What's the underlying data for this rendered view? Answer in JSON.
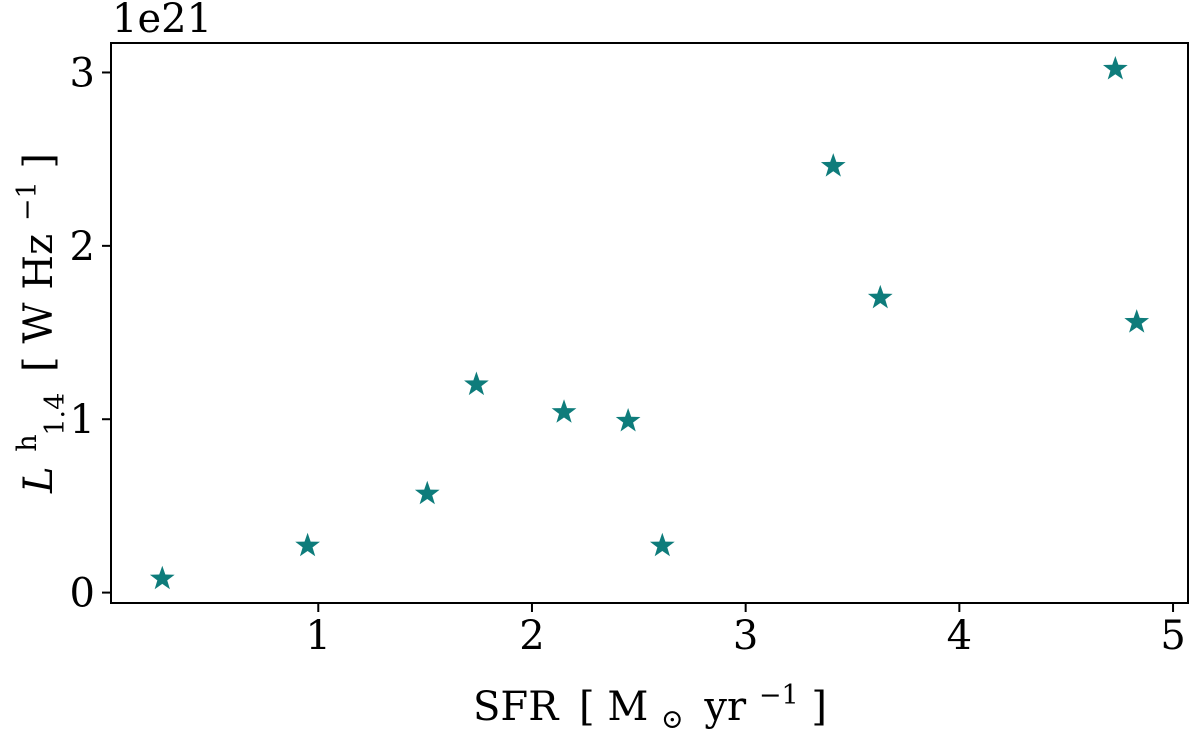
{
  "chart_data": {
    "type": "scatter",
    "offset_label": "1e21",
    "xlabel": {
      "main": "SFR",
      "open": "[",
      "unit": "M",
      "sun": "⊙",
      "yr": "yr",
      "exp": "−1",
      "close": "]"
    },
    "ylabel": {
      "L": "L",
      "sup": "h",
      "sub": "1.4",
      "open": "[",
      "unit": "W Hz",
      "exp": "−1",
      "close": "]"
    },
    "xlim": [
      0.03,
      5.07
    ],
    "ylim": [
      -0.06,
      3.17
    ],
    "x_ticks": [
      1,
      2,
      3,
      4,
      5
    ],
    "x_tick_labels": [
      "1",
      "2",
      "3",
      "4",
      "5"
    ],
    "y_ticks": [
      0,
      1,
      2,
      3
    ],
    "y_tick_labels": [
      "0",
      "1",
      "2",
      "3"
    ],
    "marker": "star",
    "color": "#0e7c7b",
    "grid": false,
    "series": [
      {
        "points": [
          {
            "x": 0.27,
            "y": 0.08
          },
          {
            "x": 0.95,
            "y": 0.27
          },
          {
            "x": 1.51,
            "y": 0.57
          },
          {
            "x": 1.74,
            "y": 1.2
          },
          {
            "x": 2.15,
            "y": 1.04
          },
          {
            "x": 2.45,
            "y": 0.99
          },
          {
            "x": 2.61,
            "y": 0.27
          },
          {
            "x": 3.41,
            "y": 2.46
          },
          {
            "x": 3.63,
            "y": 1.7
          },
          {
            "x": 4.73,
            "y": 3.02
          },
          {
            "x": 4.83,
            "y": 1.56
          }
        ]
      }
    ]
  }
}
